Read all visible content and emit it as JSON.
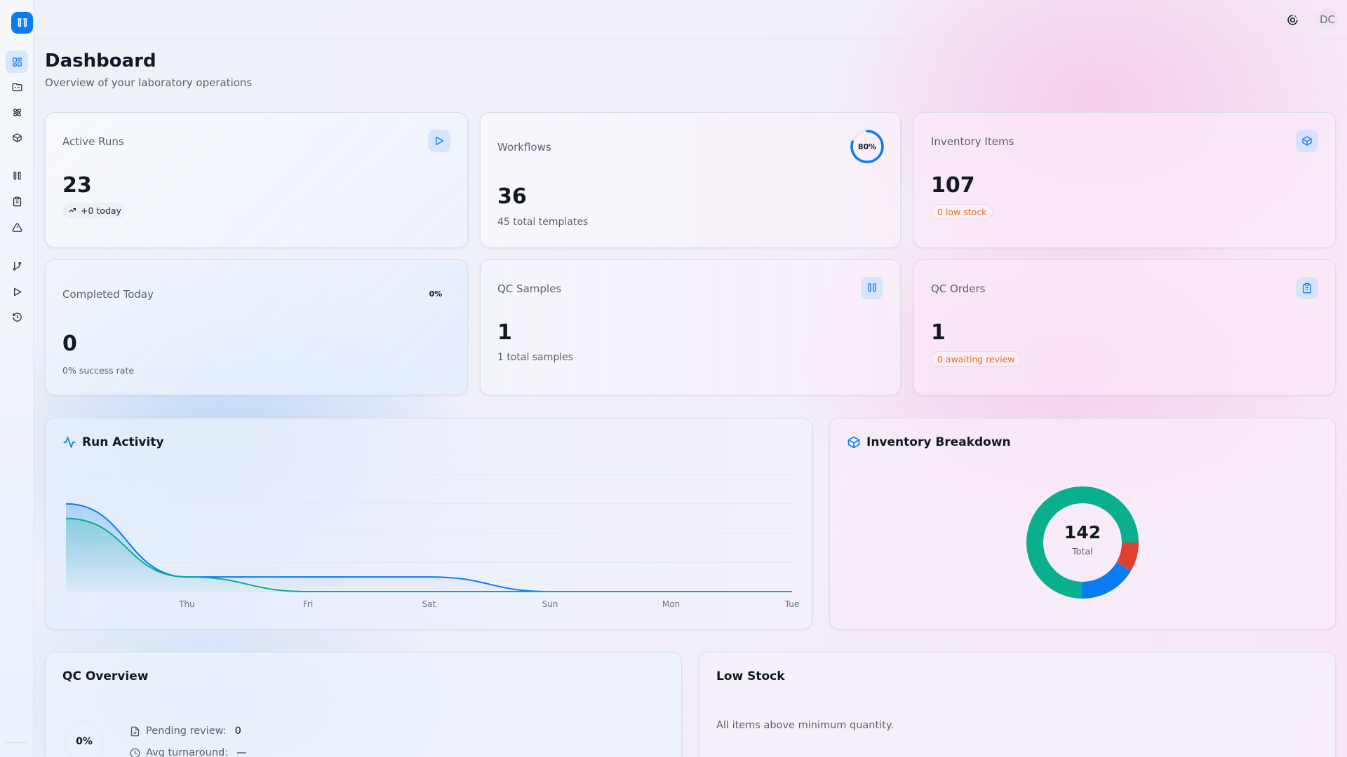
{
  "app": {
    "logo_icon": "test-tubes-icon",
    "user_initials": "DC",
    "theme_toggle_icon": "theme-toggle-icon"
  },
  "sidebar": {
    "items": [
      {
        "name": "dashboard",
        "icon": "layout-grid-icon",
        "active": true
      },
      {
        "name": "projects",
        "icon": "folder-icon",
        "active": false
      },
      {
        "name": "science",
        "icon": "atom-icon",
        "active": false
      },
      {
        "name": "inventory",
        "icon": "box-icon",
        "active": false
      },
      {
        "name": "samples",
        "icon": "test-tubes-icon",
        "active": false
      },
      {
        "name": "qc-orders",
        "icon": "clipboard-list-icon",
        "active": false
      },
      {
        "name": "alerts",
        "icon": "alert-triangle-icon",
        "active": false
      },
      {
        "name": "workflows",
        "icon": "git-branch-icon",
        "active": false
      },
      {
        "name": "runs",
        "icon": "play-icon",
        "active": false
      },
      {
        "name": "history",
        "icon": "history-icon",
        "active": false
      }
    ]
  },
  "header": {
    "title": "Dashboard",
    "subtitle": "Overview of your laboratory operations"
  },
  "stats": {
    "active_runs": {
      "label": "Active Runs",
      "value": "23",
      "sub": "+0 today",
      "icon": "play-icon"
    },
    "workflows": {
      "label": "Workflows",
      "value": "36",
      "sub": "45 total templates",
      "ring_pct": 80,
      "ring_text": "80%"
    },
    "inventory": {
      "label": "Inventory Items",
      "value": "107",
      "badge": "0 low stock",
      "icon": "box-icon"
    },
    "completed": {
      "label": "Completed Today",
      "value": "0",
      "sub": "0% success rate",
      "ring_pct": 0,
      "ring_text": "0%"
    },
    "qc_samples": {
      "label": "QC Samples",
      "value": "1",
      "sub": "1 total samples",
      "icon": "test-tubes-icon"
    },
    "qc_orders": {
      "label": "QC Orders",
      "value": "1",
      "badge": "0 awaiting review",
      "icon": "clipboard-list-icon"
    }
  },
  "run_activity": {
    "title": "Run Activity",
    "icon": "activity-icon"
  },
  "inventory_breakdown": {
    "title": "Inventory Breakdown",
    "icon": "box-icon",
    "total": "142",
    "total_label": "Total"
  },
  "qc_overview": {
    "title": "QC Overview",
    "ring_text": "0%",
    "pending_label": "Pending review:",
    "pending_value": "0",
    "turnaround_label": "Avg turnaround:",
    "turnaround_value": "—"
  },
  "low_stock": {
    "title": "Low Stock",
    "empty_message": "All items above minimum quantity."
  },
  "colors": {
    "accent": "#0a7cf2",
    "green": "#0aaf8e",
    "red": "#e0412f",
    "warn": "#e07016"
  },
  "chart_data": [
    {
      "type": "area",
      "title": "Run Activity",
      "categories": [
        "",
        "Thu",
        "Fri",
        "Sat",
        "Sun",
        "Mon",
        "Tue"
      ],
      "series": [
        {
          "name": "Series A (blue)",
          "color": "#0a7cf2",
          "values": [
            6,
            1,
            1,
            1,
            0,
            0,
            0
          ]
        },
        {
          "name": "Series B (green)",
          "color": "#0aaf8e",
          "values": [
            5,
            1,
            0,
            0,
            0,
            0,
            0
          ]
        }
      ],
      "xlabel": "",
      "ylabel": "",
      "ylim": [
        0,
        8
      ],
      "grid": true,
      "legend": "none"
    },
    {
      "type": "pie",
      "title": "Inventory Breakdown",
      "donut": true,
      "center_text": "142 Total",
      "slices": [
        {
          "label": "Segment 1 (red)",
          "color": "#e0412f",
          "value": 12
        },
        {
          "label": "Segment 2 (blue)",
          "color": "#0a7cf2",
          "value": 24
        },
        {
          "label": "Segment 3 (green)",
          "color": "#0aaf8e",
          "value": 106
        }
      ]
    }
  ]
}
